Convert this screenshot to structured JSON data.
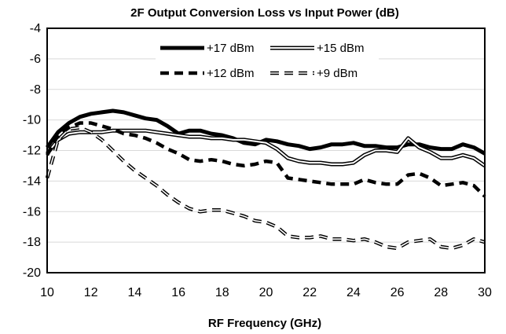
{
  "chart_data": {
    "type": "line",
    "title": "2F Output Conversion Loss vs Input Power (dB)",
    "xlabel": "RF Frequency (GHz)",
    "ylabel": "",
    "xlim": [
      10,
      30
    ],
    "ylim": [
      -20,
      -4
    ],
    "xticks": [
      10,
      12,
      14,
      16,
      18,
      20,
      22,
      24,
      26,
      28,
      30
    ],
    "yticks": [
      -4,
      -6,
      -8,
      -10,
      -12,
      -14,
      -16,
      -18,
      -20
    ],
    "grid": "horizontal",
    "legend_position": "top-center",
    "series": [
      {
        "name": "+17 dBm",
        "style": "solid-thick",
        "color": "#000000",
        "x": [
          10,
          10.5,
          11,
          11.5,
          12,
          12.5,
          13,
          13.5,
          14,
          14.5,
          15,
          15.5,
          16,
          16.5,
          17,
          17.5,
          18,
          18.5,
          19,
          19.5,
          20,
          20.5,
          21,
          21.5,
          22,
          22.5,
          23,
          23.5,
          24,
          24.5,
          25,
          25.5,
          26,
          26.5,
          27,
          27.5,
          28,
          28.5,
          29,
          29.5,
          30
        ],
        "y": [
          -11.8,
          -10.8,
          -10.2,
          -9.8,
          -9.6,
          -9.5,
          -9.4,
          -9.5,
          -9.7,
          -9.9,
          -10.0,
          -10.4,
          -10.9,
          -10.7,
          -10.7,
          -10.9,
          -11.0,
          -11.2,
          -11.5,
          -11.6,
          -11.3,
          -11.4,
          -11.6,
          -11.7,
          -11.9,
          -11.8,
          -11.6,
          -11.6,
          -11.5,
          -11.7,
          -11.7,
          -11.8,
          -11.8,
          -11.6,
          -11.6,
          -11.8,
          -11.9,
          -11.9,
          -11.6,
          -11.8,
          -12.2
        ]
      },
      {
        "name": "+15 dBm",
        "style": "double-line",
        "color": "#000000",
        "x": [
          10,
          10.5,
          11,
          11.5,
          12,
          12.5,
          13,
          13.5,
          14,
          14.5,
          15,
          15.5,
          16,
          16.5,
          17,
          17.5,
          18,
          18.5,
          19,
          19.5,
          20,
          20.5,
          21,
          21.5,
          22,
          22.5,
          23,
          23.5,
          24,
          24.5,
          25,
          25.5,
          26,
          26.5,
          27,
          27.5,
          28,
          28.5,
          29,
          29.5,
          30
        ],
        "y": [
          -12.2,
          -11.3,
          -10.9,
          -10.8,
          -10.8,
          -10.8,
          -10.7,
          -10.7,
          -10.7,
          -10.7,
          -10.8,
          -10.9,
          -11.0,
          -11.1,
          -11.1,
          -11.2,
          -11.2,
          -11.3,
          -11.3,
          -11.4,
          -11.5,
          -11.9,
          -12.5,
          -12.7,
          -12.8,
          -12.8,
          -12.9,
          -12.9,
          -12.8,
          -12.3,
          -12.0,
          -12.0,
          -12.1,
          -11.2,
          -11.8,
          -12.1,
          -12.5,
          -12.5,
          -12.3,
          -12.5,
          -13.0
        ]
      },
      {
        "name": "+12 dBm",
        "style": "dashed-thick",
        "color": "#000000",
        "x": [
          10,
          10.5,
          11,
          11.5,
          12,
          12.5,
          13,
          13.5,
          14,
          14.5,
          15,
          15.5,
          16,
          16.5,
          17,
          17.5,
          18,
          18.5,
          19,
          19.5,
          20,
          20.5,
          21,
          21.5,
          22,
          22.5,
          23,
          23.5,
          24,
          24.5,
          25,
          25.5,
          26,
          26.5,
          27,
          27.5,
          28,
          28.5,
          29,
          29.5,
          30
        ],
        "y": [
          -12.3,
          -11.0,
          -10.5,
          -10.2,
          -10.2,
          -10.4,
          -10.6,
          -10.9,
          -11.0,
          -11.2,
          -11.5,
          -11.9,
          -12.2,
          -12.6,
          -12.7,
          -12.6,
          -12.7,
          -12.9,
          -13.0,
          -12.9,
          -12.7,
          -12.8,
          -13.8,
          -13.9,
          -14.0,
          -14.1,
          -14.2,
          -14.2,
          -14.2,
          -13.9,
          -14.1,
          -14.2,
          -14.2,
          -13.6,
          -13.5,
          -13.8,
          -14.3,
          -14.2,
          -14.1,
          -14.3,
          -15.0
        ]
      },
      {
        "name": "+9 dBm",
        "style": "dashed-double",
        "color": "#000000",
        "x": [
          10,
          10.5,
          11,
          11.5,
          12,
          12.5,
          13,
          13.5,
          14,
          14.5,
          15,
          15.5,
          16,
          16.5,
          17,
          17.5,
          18,
          18.5,
          19,
          19.5,
          20,
          20.5,
          21,
          21.5,
          22,
          22.5,
          23,
          23.5,
          24,
          24.5,
          25,
          25.5,
          26,
          26.5,
          27,
          27.5,
          28,
          28.5,
          29,
          29.5,
          30
        ],
        "y": [
          -13.8,
          -11.3,
          -10.6,
          -10.5,
          -10.8,
          -11.3,
          -12.0,
          -12.7,
          -13.3,
          -13.8,
          -14.3,
          -14.9,
          -15.4,
          -15.8,
          -16.0,
          -15.9,
          -15.9,
          -16.1,
          -16.3,
          -16.6,
          -16.7,
          -17.0,
          -17.6,
          -17.7,
          -17.7,
          -17.6,
          -17.8,
          -17.8,
          -17.9,
          -17.8,
          -18.0,
          -18.3,
          -18.4,
          -18.0,
          -17.9,
          -17.8,
          -18.3,
          -18.4,
          -18.2,
          -17.8,
          -18.0
        ]
      }
    ]
  }
}
